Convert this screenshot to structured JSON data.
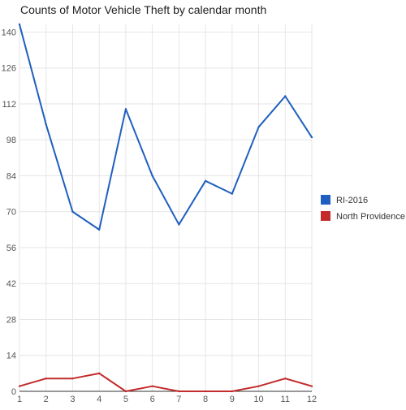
{
  "chart_data": {
    "type": "line",
    "title": "Counts of Motor Vehicle Theft by calendar month",
    "xlabel": "",
    "ylabel": "",
    "x": [
      1,
      2,
      3,
      4,
      5,
      6,
      7,
      8,
      9,
      10,
      11,
      12
    ],
    "x_ticks": [
      "1",
      "2",
      "3",
      "4",
      "5",
      "6",
      "7",
      "8",
      "9",
      "10",
      "11",
      "12"
    ],
    "y_ticks": [
      "0",
      "14",
      "28",
      "42",
      "56",
      "70",
      "84",
      "98",
      "112",
      "126",
      "140"
    ],
    "ylim": [
      0,
      143
    ],
    "grid": true,
    "legend_position": "right",
    "series": [
      {
        "name": "RI-2016",
        "color": "#1f5fbf",
        "values": [
          143,
          104,
          70,
          63,
          110,
          84,
          65,
          82,
          77,
          103,
          115,
          99
        ]
      },
      {
        "name": "North Providence",
        "color": "#c42b2b",
        "values": [
          2,
          5,
          5,
          7,
          0,
          2,
          0,
          0,
          0,
          2,
          5,
          2
        ]
      }
    ]
  }
}
